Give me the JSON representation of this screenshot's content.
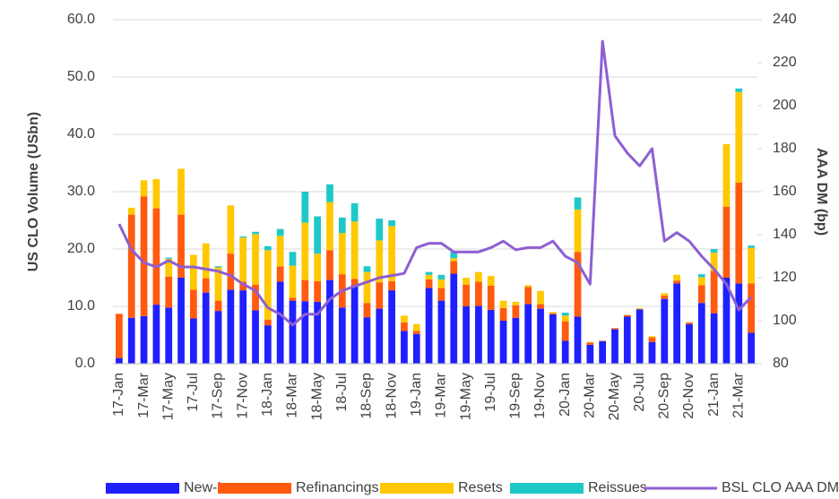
{
  "chart_data": {
    "type": "stacked_bar_line",
    "y_label": "US CLO Volume (USbn)",
    "y2_label": "AAA DM (bp)",
    "categories": [
      "17-Jan",
      null,
      "17-Mar",
      null,
      "17-May",
      null,
      "17-Jul",
      null,
      "17-Sep",
      null,
      "17-Nov",
      null,
      "18-Jan",
      null,
      "18-Mar",
      null,
      "18-May",
      null,
      "18-Jul",
      null,
      "18-Sep",
      null,
      "18-Nov",
      null,
      "19-Jan",
      null,
      "19-Mar",
      null,
      "19-May",
      null,
      "19-Jul",
      null,
      "19-Sep",
      null,
      "19-Nov",
      null,
      "20-Jan",
      null,
      "20-Mar",
      null,
      "20-May",
      null,
      "20-Jul",
      null,
      "20-Sep",
      null,
      "20-Nov",
      null,
      "21-Jan",
      null,
      "21-Mar",
      null
    ],
    "ylim": [
      0,
      60
    ],
    "yticks": [
      {
        "value": 0,
        "label": "0.0"
      },
      {
        "value": 10,
        "label": "10.0"
      },
      {
        "value": 20,
        "label": "20.0"
      },
      {
        "value": 30,
        "label": "30.0"
      },
      {
        "value": 40,
        "label": "40.0"
      },
      {
        "value": 50,
        "label": "50.0"
      },
      {
        "value": 60,
        "label": "60.0"
      }
    ],
    "y2lim": [
      80,
      240
    ],
    "y2ticks": [
      80,
      100,
      120,
      140,
      160,
      180,
      200,
      220,
      240
    ],
    "grid": true,
    "legend": "bottom",
    "series": [
      {
        "name": "New-Issues",
        "color": "#1f1fff",
        "values": [
          1.0,
          8.0,
          8.3,
          10.3,
          9.8,
          15,
          7.9,
          12.4,
          9.2,
          12.9,
          12.8,
          9.3,
          6.7,
          14.3,
          11,
          10.9,
          10.8,
          14.6,
          9.8,
          13.7,
          8.1,
          9.6,
          12.8,
          5.7,
          5.2,
          13.2,
          11,
          15.7,
          10,
          10.1,
          9.4,
          7.5,
          8,
          10.4,
          9.6,
          8.6,
          4,
          8.2,
          3.3,
          3.9,
          6,
          8.2,
          9.5,
          3.8,
          11.3,
          14,
          6.9,
          10.6,
          8.8,
          15,
          14,
          5.4
        ]
      },
      {
        "name": "Refinancings",
        "color": "#ff5a0f",
        "values": [
          7.7,
          18.0,
          20.9,
          16.8,
          5.4,
          11,
          5,
          2.5,
          1.8,
          6.3,
          1.5,
          4.5,
          1,
          2.7,
          0.5,
          3.7,
          3.6,
          5.2,
          5.8,
          1.1,
          2.5,
          4.6,
          1.6,
          1.5,
          0.5,
          1.5,
          2.2,
          2.2,
          3.8,
          4.2,
          4.2,
          2.2,
          2.2,
          3.0,
          0.8,
          0.2,
          3.4,
          11.3,
          0.4,
          0.1,
          0.2,
          0.3,
          0,
          0.8,
          0.6,
          0.5,
          0.3,
          3.1,
          7.4,
          12.4,
          17.6,
          8.6
        ]
      },
      {
        "name": "Resets",
        "color": "#ffc800",
        "values": [
          0,
          1.2,
          2.8,
          5.1,
          3.1,
          8,
          6.1,
          6.1,
          5.8,
          8.4,
          7.7,
          8.8,
          12.1,
          5.3,
          5.6,
          10,
          4.8,
          8.4,
          7.2,
          10,
          5.4,
          7.3,
          9.6,
          1.2,
          1.2,
          0.8,
          1.5,
          0.5,
          1.2,
          1.7,
          1.7,
          1.3,
          0.6,
          0.3,
          2.3,
          0.2,
          1,
          7.4,
          0.1,
          0,
          0,
          0,
          0.2,
          0.2,
          0.4,
          1,
          0,
          1.4,
          3.2,
          10.9,
          15.8,
          6.2
        ]
      },
      {
        "name": "Reissues",
        "color": "#1fc8c8",
        "values": [
          0,
          0,
          0,
          0,
          0.2,
          0,
          0,
          0,
          0.2,
          0,
          0.2,
          0.4,
          0.7,
          1.2,
          2.4,
          5.4,
          6.5,
          3.1,
          2.7,
          3.2,
          1,
          3.8,
          1,
          0,
          0,
          0.5,
          0.8,
          1.1,
          0,
          0,
          0,
          0,
          0,
          0,
          0,
          0,
          0.5,
          2.1,
          0,
          0,
          0,
          0,
          0,
          0,
          0,
          0,
          0,
          0.5,
          0.6,
          0,
          0.6,
          0.4
        ]
      },
      {
        "name": "BSL CLO AAA DM",
        "color": "#8e5fd2",
        "axis": "y2",
        "values": [
          145,
          133,
          127,
          125,
          128,
          125,
          125,
          124,
          123,
          121,
          117,
          114,
          106,
          103,
          98,
          103,
          103,
          110,
          114,
          116,
          118,
          120,
          121,
          122,
          134,
          136,
          136,
          132,
          132,
          132,
          134,
          137,
          133,
          134,
          134,
          137,
          130,
          127,
          117,
          230,
          186,
          178,
          172,
          180,
          137,
          141,
          137,
          130,
          124,
          117,
          105,
          111
        ]
      }
    ]
  }
}
